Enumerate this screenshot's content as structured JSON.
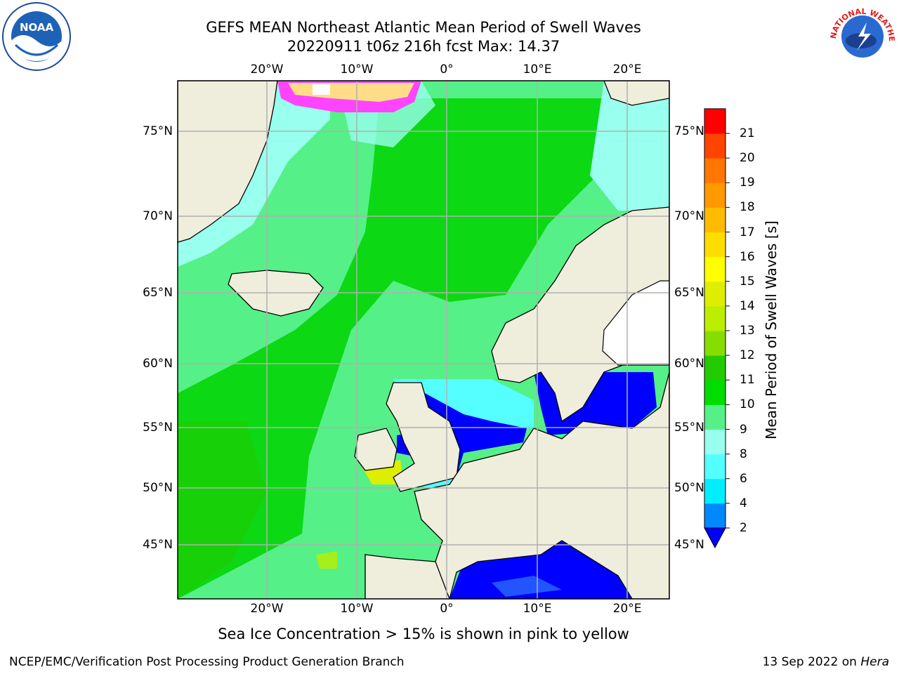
{
  "header": {
    "title_line1": "GEFS MEAN Northeast Atlantic Mean Period of Swell Waves",
    "title_line2": "20220911 t06z 216h fcst   Max: 14.37"
  },
  "logos": {
    "left": "NOAA",
    "right": "NATIONAL WEATHER SERVICE"
  },
  "map": {
    "lon_labels": [
      "20°W",
      "10°W",
      "0°",
      "10°E",
      "20°E"
    ],
    "lat_labels": [
      "75°N",
      "70°N",
      "65°N",
      "60°N",
      "55°N",
      "50°N",
      "45°N"
    ],
    "colors": {
      "land": "#efeddc",
      "ocean_deep": "#00d400",
      "ocean_mid": "#55f088",
      "ocean_light": "#99ffee",
      "shelf": "#2255ff",
      "ice": "#ff44ff"
    }
  },
  "colorbar": {
    "label": "Mean Period of Swell Waves [s]",
    "ticks": [
      "21",
      "20",
      "19",
      "18",
      "17",
      "16",
      "15",
      "14",
      "13",
      "12",
      "11",
      "10",
      "9",
      "8",
      "6",
      "4",
      "2"
    ],
    "colors": [
      "#0000ff",
      "#0088ff",
      "#00eeff",
      "#55ffff",
      "#99ffee",
      "#55f088",
      "#00dd00",
      "#22cc00",
      "#88dd00",
      "#bbee00",
      "#ddee00",
      "#ffff00",
      "#ffdd00",
      "#ffbb00",
      "#ff9900",
      "#ff7700",
      "#ff4400",
      "#ff0000"
    ]
  },
  "footer": {
    "note": "Sea Ice Concentration > 15% is shown in pink to yellow",
    "left": "NCEP/EMC/Verification Post Processing Product Generation Branch",
    "right_date": "13 Sep 2022 on ",
    "right_host": "Hera"
  }
}
